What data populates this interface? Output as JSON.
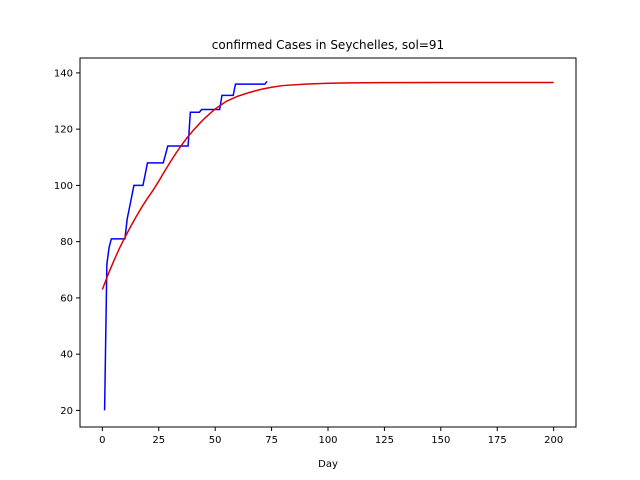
{
  "chart_data": {
    "type": "line",
    "title": "confirmed Cases in Seychelles, sol=91",
    "xlabel": "Day",
    "ylabel": "",
    "xlim": [
      -9.9,
      209.9
    ],
    "ylim": [
      14.1,
      145.3
    ],
    "xticks": [
      0,
      25,
      50,
      75,
      100,
      125,
      150,
      175,
      200
    ],
    "yticks": [
      20,
      40,
      60,
      80,
      100,
      120,
      140
    ],
    "grid": false,
    "legend": "none",
    "series": [
      {
        "color": "#0000ff",
        "x": [
          1,
          2,
          3,
          4,
          10,
          11,
          12,
          14,
          18,
          19,
          20,
          27,
          28,
          29,
          38,
          39,
          40,
          43,
          44,
          52,
          53,
          54,
          58,
          59,
          70,
          72,
          73
        ],
        "y": [
          20,
          72,
          78,
          81,
          81,
          88,
          92,
          100,
          100,
          104,
          108,
          108,
          111,
          114,
          114,
          126,
          126,
          126,
          127,
          127,
          132,
          132,
          132,
          136,
          136,
          136,
          137
        ]
      },
      {
        "color": "#dd0000",
        "x": [
          0,
          2.5,
          5,
          7.5,
          10,
          12.5,
          15,
          17.5,
          20,
          22.5,
          25,
          27.5,
          30,
          32.5,
          35,
          37.5,
          40,
          42.5,
          45,
          47.5,
          50,
          55,
          60,
          65,
          70,
          75,
          80,
          90,
          100,
          110,
          125,
          150,
          175,
          200
        ],
        "y": [
          63,
          68.2,
          73,
          77.5,
          81.5,
          85.3,
          88.9,
          92.3,
          95.4,
          98.3,
          101.5,
          104.9,
          108.2,
          111.3,
          114.2,
          116.9,
          119.3,
          121.5,
          123.6,
          125.4,
          127.2,
          129.9,
          131.7,
          133,
          134.1,
          134.9,
          135.5,
          136,
          136.3,
          136.45,
          136.55,
          136.58,
          136.59,
          136.6
        ]
      }
    ]
  }
}
